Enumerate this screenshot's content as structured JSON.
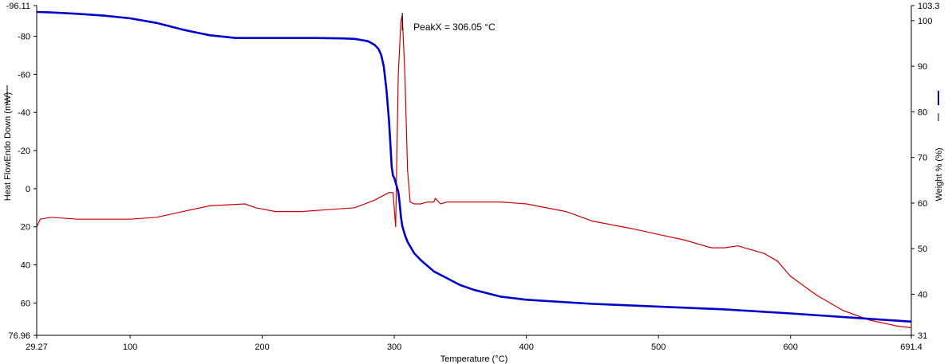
{
  "chart_data": {
    "type": "line",
    "title": "",
    "xlabel": "Temperature (°C)",
    "ylabel_left": "Heat FlowEndo Down (mW)",
    "ylabel_right": "Weight % (%)",
    "xlim": [
      29.27,
      691.4
    ],
    "ylim_left": [
      76.96,
      -96.11
    ],
    "ylim_right": [
      31,
      103.3
    ],
    "x_tick_labels": [
      "29.27",
      "100",
      "200",
      "300",
      "400",
      "500",
      "600",
      "691.4"
    ],
    "x_ticks": [
      29.27,
      100,
      200,
      300,
      400,
      500,
      600,
      691.4
    ],
    "y_left_tick_labels": [
      "-96.11",
      "-80",
      "-60",
      "-40",
      "-20",
      "0",
      "20",
      "40",
      "60",
      "76.96"
    ],
    "y_left_ticks": [
      -96.11,
      -80,
      -60,
      -40,
      -20,
      0,
      20,
      40,
      60,
      76.96
    ],
    "y_right_tick_labels": [
      "103.3",
      "100",
      "90",
      "80",
      "70",
      "60",
      "50",
      "40",
      "31"
    ],
    "y_right_ticks": [
      103.3,
      100,
      90,
      80,
      70,
      60,
      50,
      40,
      31
    ],
    "annotation": {
      "text": "PeakX = 306.05 °C",
      "x": 306.05
    },
    "colors": {
      "heat_flow": "#cc0000",
      "weight": "#0000cc",
      "marker": "#000000"
    },
    "series": [
      {
        "axis": "left",
        "color": "#cc0000",
        "x": [
          29.27,
          32,
          40,
          60,
          80,
          100,
          120,
          140,
          160,
          187,
          195,
          210,
          230,
          250,
          270,
          285,
          296,
          299,
          301,
          303,
          305,
          306.05,
          308,
          310,
          312,
          315,
          320,
          325,
          330,
          331,
          335,
          340,
          360,
          380,
          400,
          430,
          450,
          480,
          500,
          520,
          540,
          550,
          560,
          580,
          590,
          600,
          620,
          640,
          660,
          680,
          691.4
        ],
        "y": [
          20,
          16,
          15,
          16,
          16,
          16,
          15,
          12,
          9,
          8,
          10,
          12,
          12,
          11,
          10,
          6,
          2,
          2,
          20,
          -60,
          -88,
          -91,
          -60,
          -10,
          7,
          8,
          8,
          7,
          7,
          5,
          8,
          7,
          7,
          7,
          8,
          12,
          17,
          21,
          24,
          27,
          31,
          31,
          30,
          34,
          38,
          46,
          56,
          64,
          69,
          72,
          73
        ]
      },
      {
        "axis": "right",
        "color": "#0000cc",
        "x": [
          29.27,
          40,
          60,
          80,
          100,
          120,
          140,
          160,
          180,
          200,
          220,
          240,
          260,
          270,
          280,
          285,
          288,
          290,
          292,
          294,
          296,
          297,
          298,
          299,
          300,
          301,
          302,
          303,
          304,
          305,
          306,
          308,
          310,
          315,
          320,
          330,
          340,
          350,
          360,
          380,
          400,
          450,
          500,
          550,
          600,
          650,
          691.4
        ],
        "y": [
          101.9,
          101.8,
          101.5,
          101.1,
          100.5,
          99.5,
          98,
          96.8,
          96.2,
          96.2,
          96.2,
          96.2,
          96.1,
          96,
          95.5,
          94.7,
          93.8,
          92.5,
          90,
          85,
          78,
          73,
          68,
          66,
          65.5,
          64.5,
          63.5,
          62.5,
          60,
          57,
          55,
          53,
          51.5,
          49,
          47.5,
          45,
          43.5,
          42,
          41,
          39.5,
          38.8,
          37.9,
          37.3,
          36.7,
          35.8,
          34.8,
          34
        ]
      }
    ]
  }
}
